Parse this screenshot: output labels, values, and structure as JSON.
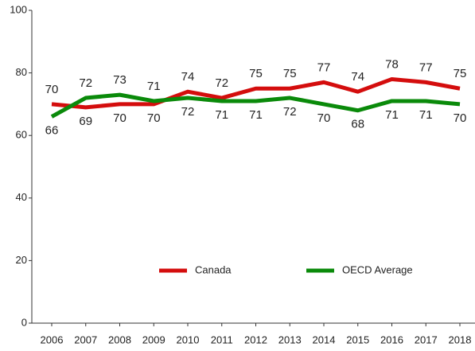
{
  "chart_data": {
    "type": "line",
    "x": [
      2006,
      2007,
      2008,
      2009,
      2010,
      2011,
      2012,
      2013,
      2014,
      2015,
      2016,
      2017,
      2018
    ],
    "xlim": [
      2006,
      2018
    ],
    "xticks": [
      2006,
      2007,
      2008,
      2009,
      2010,
      2011,
      2012,
      2013,
      2014,
      2015,
      2016,
      2017,
      2018
    ],
    "series": [
      {
        "name": "Canada",
        "color": "#d40d0d",
        "values": [
          70,
          69,
          70,
          70,
          74,
          72,
          75,
          75,
          77,
          74,
          78,
          77,
          75
        ]
      },
      {
        "name": "OECD Average",
        "color": "#0a8a0a",
        "values": [
          66,
          72,
          73,
          71,
          72,
          71,
          71,
          72,
          70,
          68,
          71,
          71,
          70
        ]
      }
    ],
    "ylim": [
      0,
      100
    ],
    "yticks": [
      0,
      20,
      40,
      60,
      80,
      100
    ]
  }
}
